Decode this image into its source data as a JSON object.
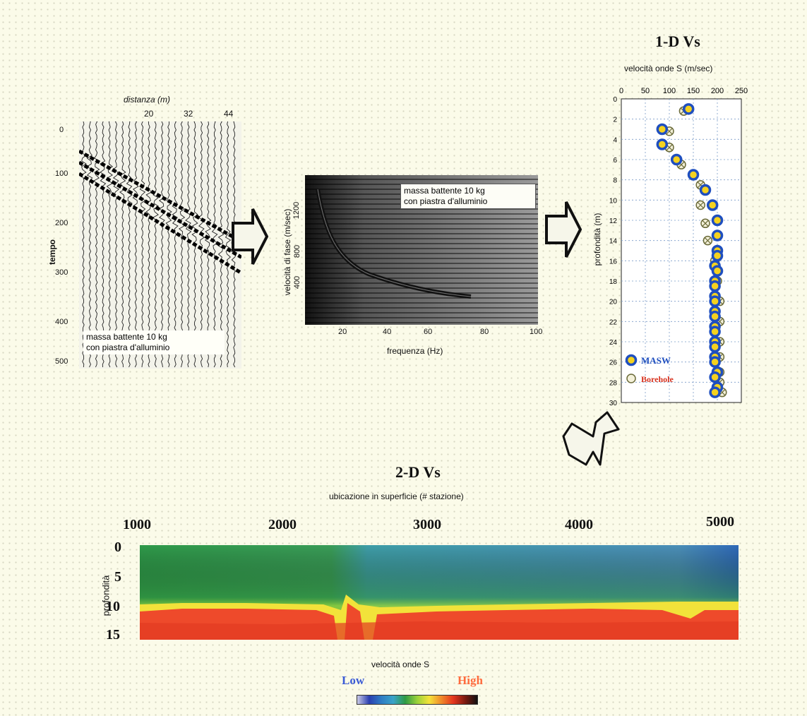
{
  "seismogram": {
    "xlabel": "distanza (m)",
    "xticks": [
      "20",
      "32",
      "44"
    ],
    "ylabel": "tempo",
    "yticks": [
      "0",
      "100",
      "200",
      "300",
      "400",
      "500"
    ],
    "note_line1": "massa battente 10 kg",
    "note_line2": "con piastra d'alluminio"
  },
  "dispersion": {
    "ylabel": "velocità di fase (m/sec)",
    "yticks": [
      "1200",
      "800",
      "400"
    ],
    "xlabel": "frequenza (Hz)",
    "xticks": [
      "20",
      "40",
      "60",
      "80",
      "100"
    ],
    "note_line1": "massa battente 10 kg",
    "note_line2": "con piastra d'alluminio"
  },
  "profile1d": {
    "title": "1-D Vs",
    "xlabel": "velocità onde S (m/sec)",
    "xticks": [
      "0",
      "50",
      "100",
      "150",
      "200",
      "250"
    ],
    "ylabel": "profondità (m)",
    "yticks": [
      "0",
      "2",
      "4",
      "6",
      "8",
      "10",
      "12",
      "14",
      "16",
      "18",
      "20",
      "22",
      "24",
      "26",
      "28",
      "30"
    ],
    "legend": [
      {
        "label": "MASW",
        "color": "#1f4fbf"
      },
      {
        "label": "Borehole",
        "color": "#d8321e"
      }
    ]
  },
  "section2d": {
    "title": "2-D Vs",
    "subtitle": "ubicazione in superficie (# stazione)",
    "xticks": [
      "1000",
      "2000",
      "3000",
      "4000",
      "5000"
    ],
    "ylabel": "profondità",
    "yticks": [
      "0",
      "5",
      "10",
      "15"
    ],
    "colorbar_label": "velocità onde S",
    "low_label": "Low",
    "high_label": "High",
    "low_color": "#3a5bd6",
    "high_color": "#ff6b3d"
  },
  "chart_data": [
    {
      "type": "scatter",
      "title": "1-D Vs",
      "xlabel": "velocità onde S (m/sec)",
      "ylabel": "profondità (m)",
      "xlim": [
        0,
        250
      ],
      "ylim": [
        30,
        0
      ],
      "series": [
        {
          "name": "MASW",
          "x": [
            140,
            85,
            85,
            115,
            150,
            175,
            190,
            200,
            200,
            200,
            195,
            195,
            195,
            195,
            195,
            195,
            195,
            200,
            200,
            200,
            200,
            195,
            195,
            195,
            195,
            195,
            195,
            195,
            195
          ],
          "y": [
            1,
            3,
            4.5,
            6,
            7.5,
            9,
            10.5,
            12,
            13.5,
            15,
            16.5,
            18,
            19.5,
            21,
            22.5,
            24,
            25.5,
            27,
            28.5,
            15.5,
            17,
            18.5,
            20,
            21.5,
            23,
            24.5,
            26,
            27.5,
            29
          ]
        },
        {
          "name": "Borehole",
          "x": [
            130,
            100,
            100,
            125,
            165,
            165,
            175,
            180,
            195,
            200,
            205,
            205,
            205,
            205,
            205,
            205,
            210
          ],
          "y": [
            1.2,
            3.2,
            4.8,
            6.5,
            8.5,
            10.5,
            12.3,
            14,
            16,
            18,
            20,
            22,
            24,
            25.5,
            27,
            28,
            29
          ]
        }
      ]
    }
  ]
}
